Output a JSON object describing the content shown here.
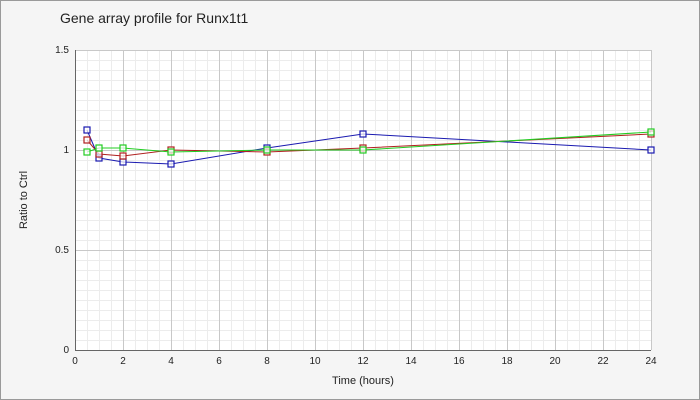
{
  "chart_data": {
    "type": "line",
    "title": "Gene array profile for Runx1t1",
    "xlabel": "Time (hours)",
    "ylabel": "Ratio to Ctrl",
    "xlim": [
      0,
      24
    ],
    "ylim": [
      0,
      1.5
    ],
    "x_ticks": [
      "0",
      "2",
      "4",
      "6",
      "8",
      "10",
      "12",
      "14",
      "16",
      "18",
      "20",
      "22",
      "24"
    ],
    "y_ticks": [
      "0",
      "0.5",
      "1",
      "1.5"
    ],
    "grid": true,
    "legend": "none",
    "marker": "open-square",
    "series": [
      {
        "color": "#1a1ab0",
        "points": [
          {
            "x": 0.5,
            "y": 1.1
          },
          {
            "x": 1,
            "y": 0.96
          },
          {
            "x": 2,
            "y": 0.94
          },
          {
            "x": 4,
            "y": 0.93
          },
          {
            "x": 8,
            "y": 1.01
          },
          {
            "x": 12,
            "y": 1.08
          },
          {
            "x": 24,
            "y": 1.0
          }
        ]
      },
      {
        "color": "#b02020",
        "points": [
          {
            "x": 0.5,
            "y": 1.05
          },
          {
            "x": 1,
            "y": 0.98
          },
          {
            "x": 2,
            "y": 0.97
          },
          {
            "x": 4,
            "y": 1.0
          },
          {
            "x": 8,
            "y": 0.99
          },
          {
            "x": 12,
            "y": 1.01
          },
          {
            "x": 24,
            "y": 1.08
          }
        ]
      },
      {
        "color": "#22cc22",
        "points": [
          {
            "x": 0.5,
            "y": 0.99
          },
          {
            "x": 1,
            "y": 1.01
          },
          {
            "x": 2,
            "y": 1.01
          },
          {
            "x": 4,
            "y": 0.99
          },
          {
            "x": 8,
            "y": 1.0
          },
          {
            "x": 12,
            "y": 1.0
          },
          {
            "x": 24,
            "y": 1.09
          }
        ]
      }
    ]
  }
}
